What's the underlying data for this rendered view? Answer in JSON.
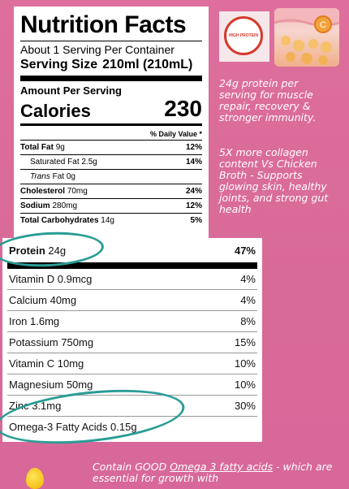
{
  "label_top": {
    "title": "Nutrition Facts",
    "servings": "About 1 Serving Per Container",
    "serving_size_label": "Serving Size",
    "serving_size_value": "210ml (210mL)",
    "amount_per_serving": "Amount Per Serving",
    "calories_label": "Calories",
    "calories_value": "230",
    "dv_header": "% Daily Value *",
    "rows": [
      {
        "name": "Total Fat",
        "amount": "9g",
        "dv": "12%"
      },
      {
        "name": "Saturated Fat",
        "amount": "2.5g",
        "dv": "14%"
      },
      {
        "name": "Trans",
        "amount": "Fat 0g",
        "dv": ""
      },
      {
        "name": "Cholesterol",
        "amount": "70mg",
        "dv": "24%"
      },
      {
        "name": "Sodium",
        "amount": "280mg",
        "dv": "12%"
      },
      {
        "name": "Total Carbohydrates",
        "amount": "14g",
        "dv": "5%"
      }
    ]
  },
  "label_bottom": {
    "rows": [
      {
        "name": "Protein",
        "amount": "24g",
        "dv": "47%"
      },
      {
        "name": "Vitamin D",
        "amount": "0.9mcg",
        "dv": "4%"
      },
      {
        "name": "Calcium",
        "amount": "40mg",
        "dv": "4%"
      },
      {
        "name": "Iron",
        "amount": "1.6mg",
        "dv": "8%"
      },
      {
        "name": "Potassium",
        "amount": "750mg",
        "dv": "15%"
      },
      {
        "name": "Vitamin C",
        "amount": "10mg",
        "dv": "10%"
      },
      {
        "name": "Magnesium",
        "amount": "50mg",
        "dv": "10%"
      },
      {
        "name": "Zinc",
        "amount": "3.1mg",
        "dv": "30%"
      },
      {
        "name": "Omega-3 Fatty Acids",
        "amount": "0.15g",
        "dv": ""
      }
    ]
  },
  "badge": {
    "text": "HIGH PROTEIN"
  },
  "side_text": {
    "protein_claim": "24g protein per serving for muscle repair, recovery & stronger immunity.",
    "collagen_claim": "5X more collagen content Vs Chicken Broth - Supports glowing skin, healthy joints, and strong gut health"
  },
  "bottom_text": {
    "prefix": "Contain GOOD ",
    "link": "Omega 3 fatty acids",
    "suffix": " - which are essential for growth with"
  },
  "colors": {
    "background": "#de6f9c",
    "ring": "#2a9d95",
    "badge_red": "#d43a2a"
  }
}
